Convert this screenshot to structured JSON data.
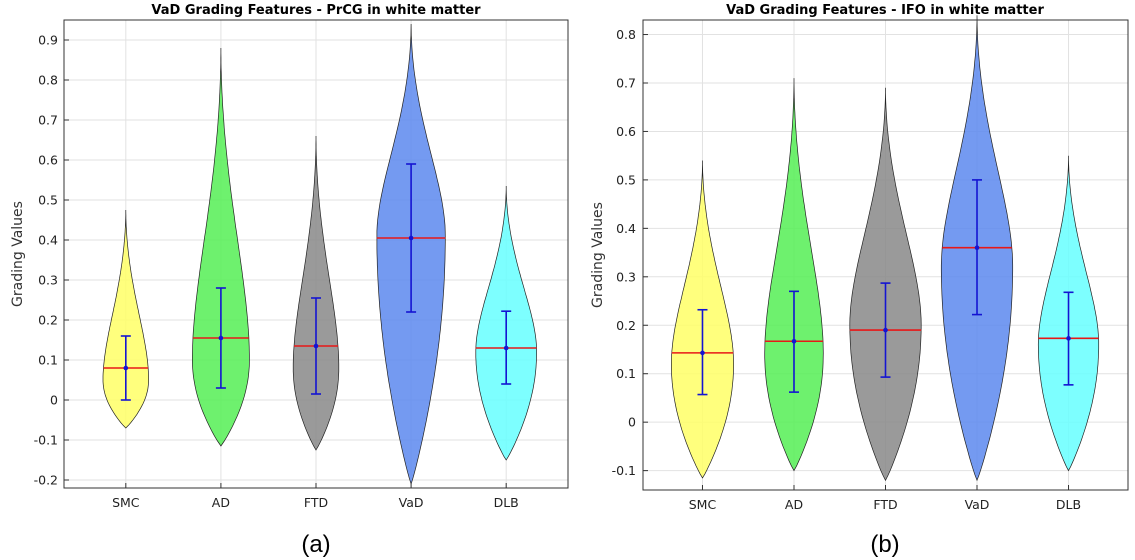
{
  "chart_data": [
    {
      "type": "violin",
      "title": "VaD Grading Features - PrCG in white matter",
      "xlabel": "",
      "ylabel": "Grading Values",
      "caption": "(a)",
      "ylim": [
        -0.22,
        0.95
      ],
      "yticks": [
        -0.2,
        -0.1,
        0,
        0.1,
        0.2,
        0.3,
        0.4,
        0.5,
        0.6,
        0.7,
        0.8,
        0.9
      ],
      "ytick_labels": [
        "-0.2",
        "-0.1",
        "0",
        "0.1",
        "0.2",
        "0.3",
        "0.4",
        "0.5",
        "0.6",
        "0.7",
        "0.8",
        "0.9"
      ],
      "grid": true,
      "categories": [
        "SMC",
        "AD",
        "FTD",
        "VaD",
        "DLB"
      ],
      "series": [
        {
          "color": "#ffff66",
          "min": -0.07,
          "max": 0.475,
          "median": 0.08,
          "mean": 0.08,
          "err_low": 0.0,
          "err_high": 0.16,
          "mode": 0.05,
          "max_width": 0.48
        },
        {
          "color": "#55ee55",
          "min": -0.115,
          "max": 0.88,
          "median": 0.155,
          "mean": 0.155,
          "err_low": 0.03,
          "err_high": 0.28,
          "mode": 0.1,
          "max_width": 0.6
        },
        {
          "color": "#888888",
          "min": -0.125,
          "max": 0.66,
          "median": 0.135,
          "mean": 0.135,
          "err_low": 0.015,
          "err_high": 0.255,
          "mode": 0.08,
          "max_width": 0.48
        },
        {
          "color": "#5c88ee",
          "min": -0.21,
          "max": 0.94,
          "median": 0.405,
          "mean": 0.405,
          "err_low": 0.22,
          "err_high": 0.59,
          "mode": 0.41,
          "max_width": 0.72
        },
        {
          "color": "#66ffff",
          "min": -0.15,
          "max": 0.535,
          "median": 0.13,
          "mean": 0.13,
          "err_low": 0.04,
          "err_high": 0.222,
          "mode": 0.12,
          "max_width": 0.64
        }
      ]
    },
    {
      "type": "violin",
      "title": "VaD Grading Features - IFO in white matter",
      "xlabel": "",
      "ylabel": "Grading Values",
      "caption": "(b)",
      "ylim": [
        -0.14,
        0.83
      ],
      "yticks": [
        -0.1,
        0,
        0.1,
        0.2,
        0.3,
        0.4,
        0.5,
        0.6,
        0.7,
        0.8
      ],
      "ytick_labels": [
        "-0.1",
        "0",
        "0.1",
        "0.2",
        "0.3",
        "0.4",
        "0.5",
        "0.6",
        "0.7",
        "0.8"
      ],
      "grid": true,
      "categories": [
        "SMC",
        "AD",
        "FTD",
        "VaD",
        "DLB"
      ],
      "series": [
        {
          "color": "#ffff66",
          "min": -0.115,
          "max": 0.54,
          "median": 0.143,
          "mean": 0.143,
          "err_low": 0.057,
          "err_high": 0.232,
          "mode": 0.12,
          "max_width": 0.68
        },
        {
          "color": "#55ee55",
          "min": -0.1,
          "max": 0.71,
          "median": 0.167,
          "mean": 0.167,
          "err_low": 0.062,
          "err_high": 0.27,
          "mode": 0.14,
          "max_width": 0.64
        },
        {
          "color": "#888888",
          "min": -0.12,
          "max": 0.69,
          "median": 0.19,
          "mean": 0.19,
          "err_low": 0.093,
          "err_high": 0.287,
          "mode": 0.2,
          "max_width": 0.78
        },
        {
          "color": "#5c88ee",
          "min": -0.12,
          "max": 0.84,
          "median": 0.36,
          "mean": 0.36,
          "err_low": 0.222,
          "err_high": 0.5,
          "mode": 0.32,
          "max_width": 0.78
        },
        {
          "color": "#66ffff",
          "min": -0.1,
          "max": 0.55,
          "median": 0.173,
          "mean": 0.173,
          "err_low": 0.077,
          "err_high": 0.268,
          "mode": 0.16,
          "max_width": 0.66
        }
      ]
    }
  ]
}
